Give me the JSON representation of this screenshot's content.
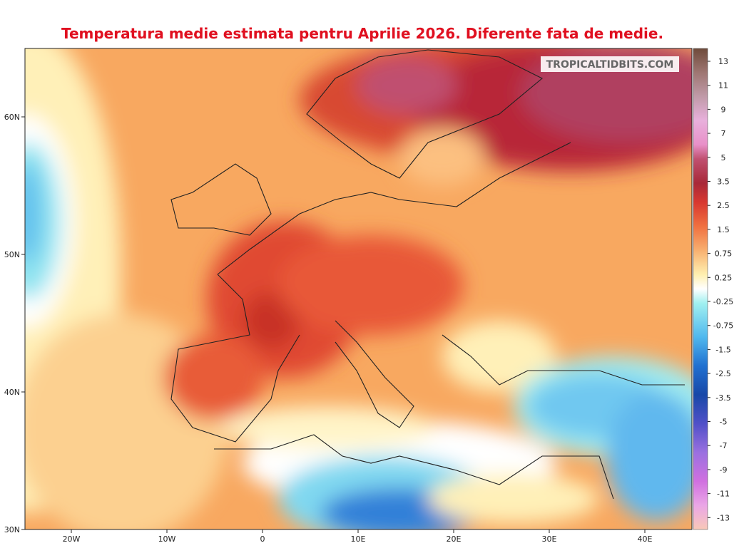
{
  "title": "Temperatura medie estimata pentru Aprilie 2026. Diferente fata de medie.",
  "watermark": "TROPICALTIDBITS.COM",
  "latitude_labels": [
    "60N",
    "50N",
    "40N",
    "30N"
  ],
  "longitude_labels": [
    "20W",
    "10W",
    "0",
    "10E",
    "20E",
    "30E",
    "40E"
  ],
  "colorbar_labels": [
    "13",
    "11",
    "9",
    "7",
    "5",
    "3.5",
    "2.5",
    "1.5",
    "0.75",
    "0.25",
    "-0.25",
    "-0.75",
    "-1.5",
    "-2.5",
    "-3.5",
    "-5",
    "-7",
    "-9",
    "-11",
    "-13"
  ]
}
